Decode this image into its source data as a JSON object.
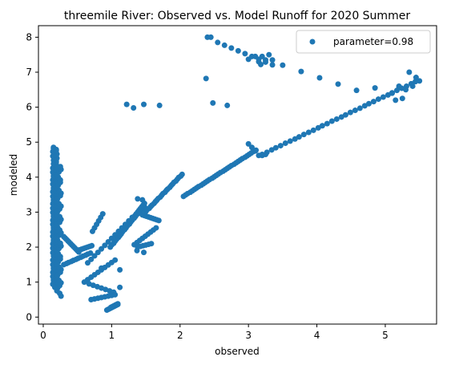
{
  "chart_data": {
    "type": "scatter",
    "title": "threemile River: Observed vs. Model Runoff for 2020 Summer",
    "xlabel": "observed",
    "ylabel": "modeled",
    "xlim": [
      -0.07,
      5.75
    ],
    "ylim": [
      -0.2,
      8.33
    ],
    "xticks": [
      0,
      1,
      2,
      3,
      4,
      5
    ],
    "yticks": [
      0,
      1,
      2,
      3,
      4,
      5,
      6,
      7,
      8
    ],
    "grid": false,
    "legend_position": "top-right",
    "colors": {
      "series": "#1f77b4"
    },
    "series": [
      {
        "name": "parameter=0.98",
        "points": []
      }
    ]
  }
}
